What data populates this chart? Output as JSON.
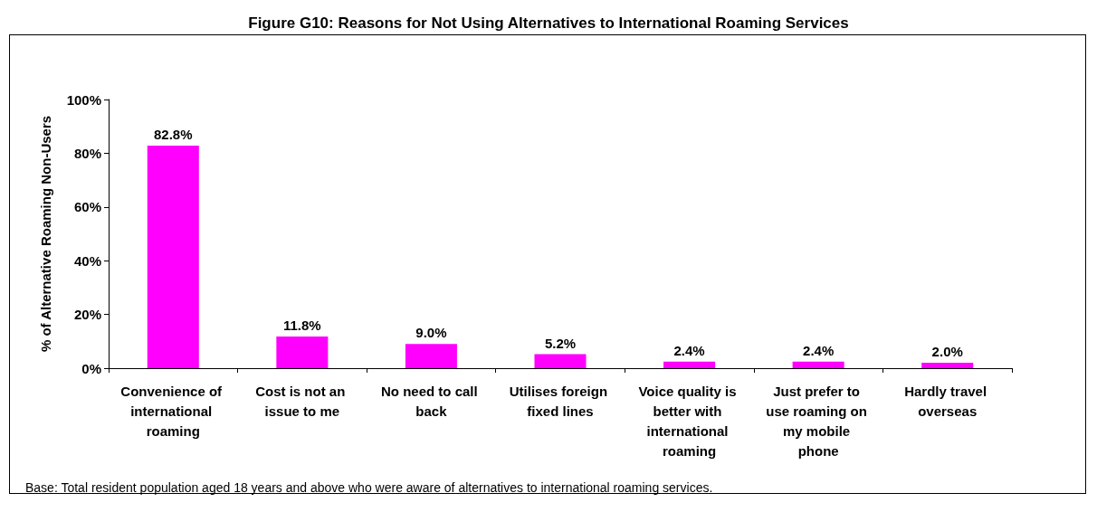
{
  "chart_data": {
    "type": "bar",
    "title": "Figure G10: Reasons for Not Using Alternatives to International Roaming Services",
    "ylabel": "% of Alternative Roaming Non-Users",
    "categories": [
      "Convenience of international roaming",
      "Cost is not an issue to me",
      "No need to call back",
      "Utilises foreign fixed lines",
      "Voice quality is better with international roaming",
      "Just prefer to use roaming on my mobile phone",
      "Hardly travel overseas"
    ],
    "values": [
      82.8,
      11.8,
      9.0,
      5.2,
      2.4,
      2.4,
      2.0
    ],
    "value_labels": [
      "82.8%",
      "11.8%",
      "9.0%",
      "5.2%",
      "2.4%",
      "2.4%",
      "2.0%"
    ],
    "color": "#ff00ff",
    "ylim": [
      0,
      100
    ],
    "yticks": [
      {
        "value": 0,
        "label": "0%"
      },
      {
        "value": 20,
        "label": "20%"
      },
      {
        "value": 40,
        "label": "40%"
      },
      {
        "value": 60,
        "label": "60%"
      },
      {
        "value": 80,
        "label": "80%"
      },
      {
        "value": 100,
        "label": "100%"
      }
    ],
    "grid": false,
    "annotations": [
      "Base: Total resident population aged 18 years and above who were aware of alternatives to international roaming services."
    ]
  }
}
